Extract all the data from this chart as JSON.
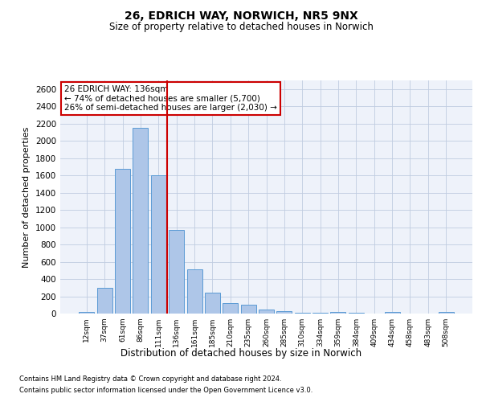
{
  "title1": "26, EDRICH WAY, NORWICH, NR5 9NX",
  "title2": "Size of property relative to detached houses in Norwich",
  "xlabel": "Distribution of detached houses by size in Norwich",
  "ylabel": "Number of detached properties",
  "categories": [
    "12sqm",
    "37sqm",
    "61sqm",
    "86sqm",
    "111sqm",
    "136sqm",
    "161sqm",
    "185sqm",
    "210sqm",
    "235sqm",
    "260sqm",
    "285sqm",
    "310sqm",
    "334sqm",
    "359sqm",
    "384sqm",
    "409sqm",
    "434sqm",
    "458sqm",
    "483sqm",
    "508sqm"
  ],
  "values": [
    20,
    300,
    1680,
    2150,
    1600,
    970,
    510,
    245,
    120,
    100,
    45,
    30,
    5,
    5,
    15,
    5,
    0,
    20,
    0,
    0,
    20
  ],
  "bar_color": "#aec6e8",
  "bar_edge_color": "#5b9bd5",
  "annotation_title": "26 EDRICH WAY: 136sqm",
  "annotation_line1": "← 74% of detached houses are smaller (5,700)",
  "annotation_line2": "26% of semi-detached houses are larger (2,030) →",
  "annotation_box_color": "#ffffff",
  "annotation_box_edge_color": "#cc0000",
  "footer1": "Contains HM Land Registry data © Crown copyright and database right 2024.",
  "footer2": "Contains public sector information licensed under the Open Government Licence v3.0.",
  "ylim": [
    0,
    2700
  ],
  "yticks": [
    0,
    200,
    400,
    600,
    800,
    1000,
    1200,
    1400,
    1600,
    1800,
    2000,
    2200,
    2400,
    2600
  ],
  "plot_background": "#eef2fa",
  "vline_color": "#cc0000",
  "vline_index": 5
}
